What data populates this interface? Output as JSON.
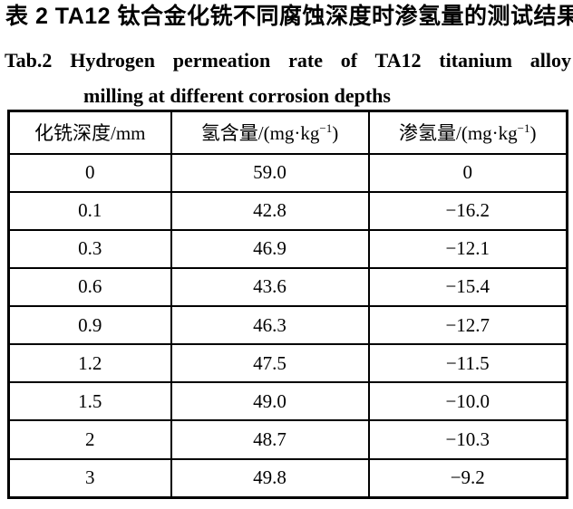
{
  "page": {
    "background_color": "#ffffff",
    "text_color": "#000000",
    "border_color": "#000000"
  },
  "caption": {
    "zh": "表 2  TA12 钛合金化铣不同腐蚀深度时渗氢量的测试结果",
    "en_line1": "Tab.2 Hydrogen permeation rate of TA12 titanium alloy",
    "en_line2": "milling at different corrosion depths"
  },
  "table": {
    "headers": [
      {
        "pre": "化铣深度/mm",
        "sup": "",
        "post": ""
      },
      {
        "pre": "氢含量/(mg·kg",
        "sup": "−1",
        "post": ")"
      },
      {
        "pre": "渗氢量/(mg·kg",
        "sup": "−1",
        "post": ")"
      }
    ],
    "rows": [
      [
        "0",
        "59.0",
        "0"
      ],
      [
        "0.1",
        "42.8",
        "−16.2"
      ],
      [
        "0.3",
        "46.9",
        "−12.1"
      ],
      [
        "0.6",
        "43.6",
        "−15.4"
      ],
      [
        "0.9",
        "46.3",
        "−12.7"
      ],
      [
        "1.2",
        "47.5",
        "−11.5"
      ],
      [
        "1.5",
        "49.0",
        "−10.0"
      ],
      [
        "2",
        "48.7",
        "−10.3"
      ],
      [
        "3",
        "49.8",
        "−9.2"
      ]
    ]
  },
  "chart_data": {
    "type": "table",
    "title_zh": "表 2  TA12 钛合金化铣不同腐蚀深度时渗氢量的测试结果",
    "title_en": "Tab.2 Hydrogen permeation rate of TA12 titanium alloy milling at different corrosion depths",
    "columns": [
      "化铣深度/mm",
      "氢含量/(mg·kg⁻¹)",
      "渗氢量/(mg·kg⁻¹)"
    ],
    "milling_depth_mm": [
      0,
      0.1,
      0.3,
      0.6,
      0.9,
      1.2,
      1.5,
      2,
      3
    ],
    "hydrogen_content_mg_per_kg": [
      59.0,
      42.8,
      46.9,
      43.6,
      46.3,
      47.5,
      49.0,
      48.7,
      49.8
    ],
    "hydrogen_permeation_mg_per_kg": [
      0,
      -16.2,
      -12.1,
      -15.4,
      -12.7,
      -11.5,
      -10.0,
      -10.3,
      -9.2
    ]
  }
}
